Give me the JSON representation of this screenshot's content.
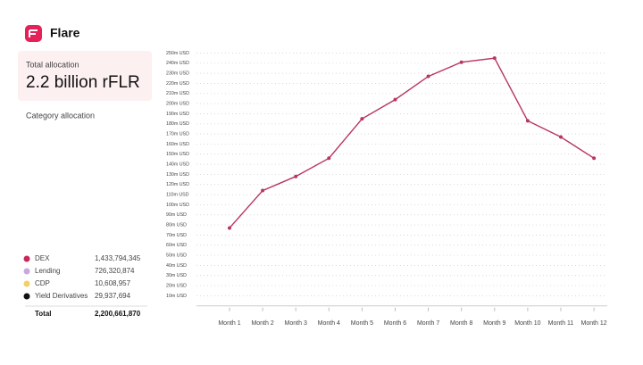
{
  "header": {
    "title": "Flare"
  },
  "summary": {
    "label": "Total allocation",
    "value": "2.2 billion rFLR"
  },
  "category_section": {
    "title": "Category allocation"
  },
  "allocation_table": {
    "rows": [
      {
        "name": "DEX",
        "color": "#c8285a",
        "amount": "1,433,794,345"
      },
      {
        "name": "Lending",
        "color": "#c9a8e0",
        "amount": "726,320,874"
      },
      {
        "name": "CDP",
        "color": "#f2d06b",
        "amount": "10,608,957"
      },
      {
        "name": "Yield Derivatives",
        "color": "#111111",
        "amount": "29,937,694"
      }
    ],
    "total": {
      "name": "Total",
      "amount": "2,200,661,870"
    }
  },
  "chart_data": {
    "type": "line",
    "categories": [
      "Month 1",
      "Month 2",
      "Month 3",
      "Month 4",
      "Month 5",
      "Month 6",
      "Month 7",
      "Month 8",
      "Month 9",
      "Month 10",
      "Month 11",
      "Month 12"
    ],
    "values": [
      77,
      114,
      128,
      146,
      185,
      204,
      227,
      241,
      245,
      183,
      167,
      146
    ],
    "color": "#b8365e",
    "ylim": [
      0,
      250
    ],
    "yticks": [
      {
        "value": 10,
        "label": "10m USD"
      },
      {
        "value": 20,
        "label": "20m USD"
      },
      {
        "value": 30,
        "label": "30m USD"
      },
      {
        "value": 40,
        "label": "40m USD"
      },
      {
        "value": 50,
        "label": "50m USD"
      },
      {
        "value": 60,
        "label": "60m USD"
      },
      {
        "value": 70,
        "label": "70m USD"
      },
      {
        "value": 80,
        "label": "80m USD"
      },
      {
        "value": 90,
        "label": "90m USD"
      },
      {
        "value": 100,
        "label": "100m USD"
      },
      {
        "value": 110,
        "label": "110m USD"
      },
      {
        "value": 120,
        "label": "120m USD"
      },
      {
        "value": 130,
        "label": "130m USD"
      },
      {
        "value": 140,
        "label": "140m USD"
      },
      {
        "value": 150,
        "label": "150m USD"
      },
      {
        "value": 160,
        "label": "160m USD"
      },
      {
        "value": 170,
        "label": "170m USD"
      },
      {
        "value": 180,
        "label": "180m USD"
      },
      {
        "value": 190,
        "label": "190m USD"
      },
      {
        "value": 200,
        "label": "200m USD"
      },
      {
        "value": 210,
        "label": "210m USD"
      },
      {
        "value": 220,
        "label": "220m USD"
      },
      {
        "value": 230,
        "label": "230m USD"
      },
      {
        "value": 240,
        "label": "240m USD"
      },
      {
        "value": 250,
        "label": "250m USD"
      }
    ],
    "grid": true
  }
}
